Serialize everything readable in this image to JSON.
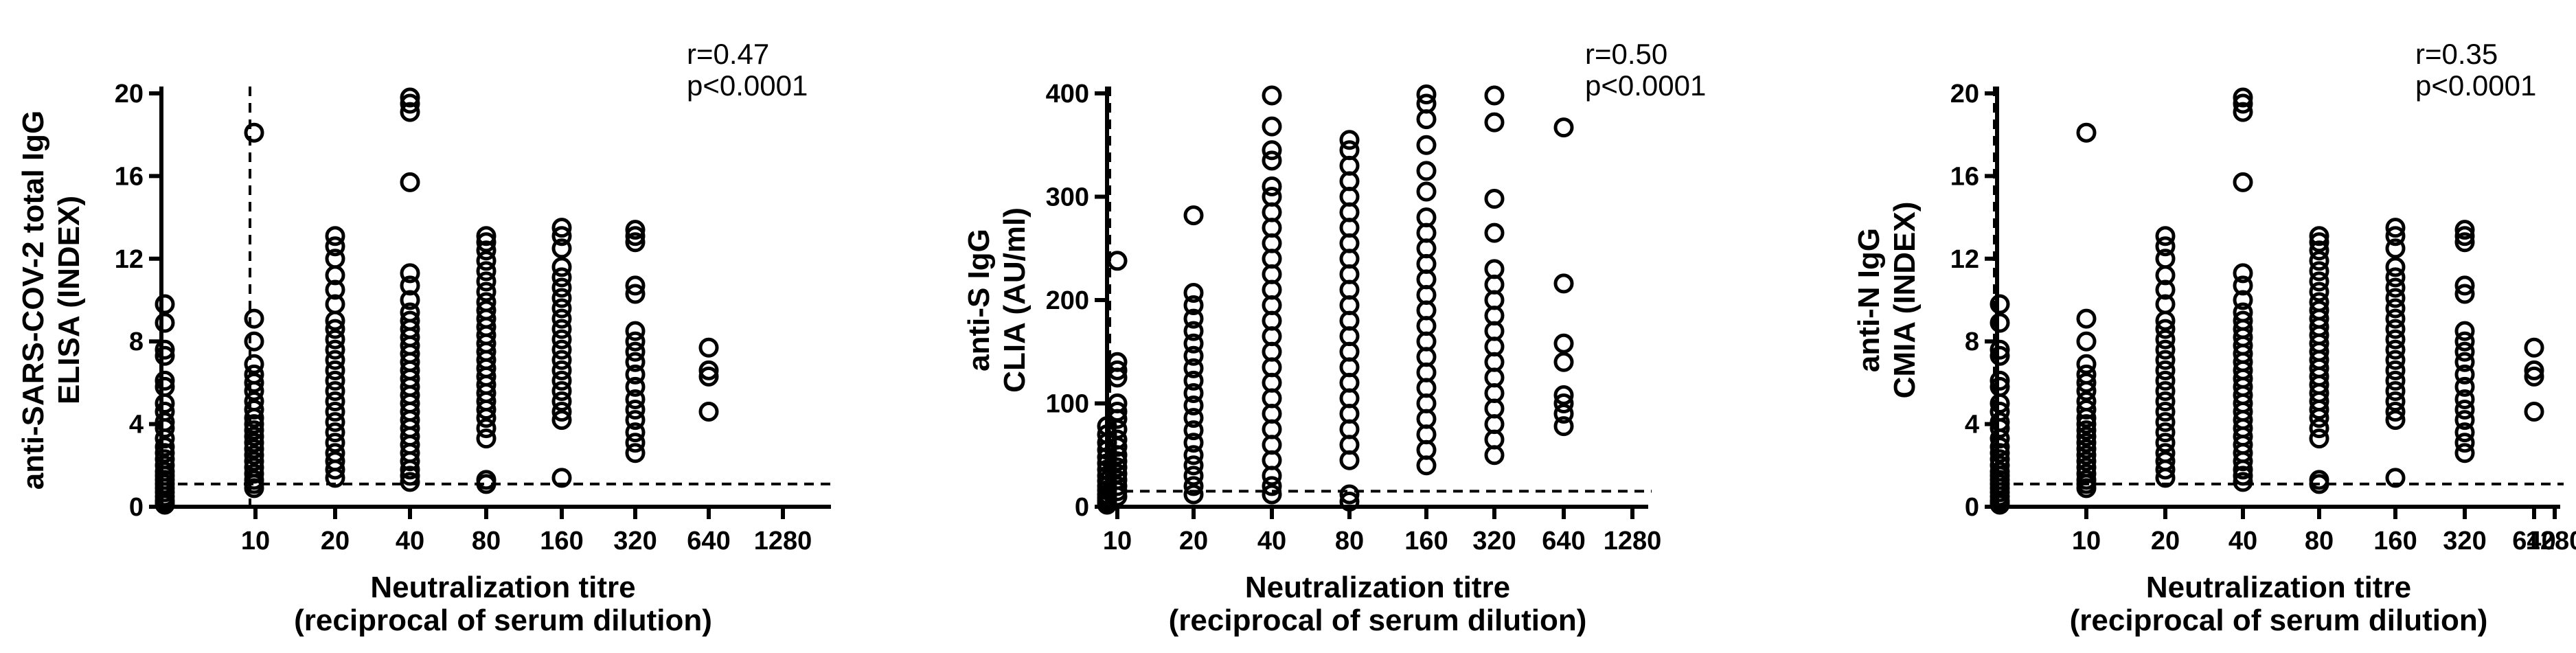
{
  "chart_data": [
    {
      "type": "scatter",
      "ylabel": [
        "anti-SARS-COV-2 total IgG",
        "ELISA (INDEX)"
      ],
      "xlabel": [
        "Neutralization titre",
        "(reciprocal of serum dilution)"
      ],
      "ylim": [
        0,
        20
      ],
      "yticks": [
        "0",
        "4",
        "8",
        "12",
        "16",
        "20"
      ],
      "xticks": [
        "10",
        "20",
        "40",
        "80",
        "160",
        "320",
        "640",
        "1280"
      ],
      "x_scale": "log2",
      "annotation": [
        "r=0.47",
        "p<0.0001"
      ],
      "ref_lines": {
        "y": 1.1,
        "x": "between <10 and 10"
      },
      "series": [
        {
          "x": "<10",
          "y": [
            9.8,
            8.9,
            7.6,
            7.3,
            6.1,
            5.8,
            5.0,
            4.6,
            4.1,
            3.8,
            3.3,
            2.9,
            2.6,
            2.3,
            2.0,
            1.7,
            1.5,
            1.3,
            1.1,
            0.9,
            0.7,
            0.5,
            0.3,
            0.2,
            0.1
          ]
        },
        {
          "x": "10",
          "y": [
            18.1,
            9.1,
            8.0,
            6.9,
            6.4,
            6.0,
            5.6,
            5.1,
            4.7,
            4.3,
            4.0,
            3.7,
            3.4,
            3.1,
            2.8,
            2.5,
            2.2,
            1.9,
            1.6,
            1.3,
            1.1,
            0.9
          ]
        },
        {
          "x": "20",
          "y": [
            13.1,
            12.6,
            12.0,
            11.2,
            10.5,
            9.8,
            9.0,
            8.6,
            8.1,
            7.6,
            7.1,
            6.6,
            6.1,
            5.6,
            5.1,
            4.6,
            4.1,
            3.6,
            3.1,
            2.6,
            2.2,
            1.8,
            1.4
          ]
        },
        {
          "x": "40",
          "y": [
            19.8,
            19.5,
            19.1,
            15.7,
            11.3,
            10.7,
            10.0,
            9.4,
            9.0,
            8.6,
            8.2,
            7.8,
            7.4,
            7.0,
            6.6,
            6.2,
            5.8,
            5.4,
            5.0,
            4.6,
            4.2,
            3.8,
            3.4,
            3.0,
            2.6,
            2.2,
            1.8,
            1.5,
            1.2
          ]
        },
        {
          "x": "80",
          "y": [
            13.1,
            12.8,
            12.4,
            11.9,
            11.4,
            10.9,
            10.4,
            9.9,
            9.5,
            9.1,
            8.7,
            8.3,
            7.9,
            7.5,
            7.1,
            6.7,
            6.3,
            5.9,
            5.5,
            5.1,
            4.7,
            4.3,
            3.8,
            3.3,
            1.3,
            1.1
          ]
        },
        {
          "x": "160",
          "y": [
            13.5,
            13.1,
            12.5,
            11.6,
            11.1,
            10.6,
            10.1,
            9.6,
            9.1,
            8.6,
            8.1,
            7.6,
            7.1,
            6.6,
            6.1,
            5.6,
            5.1,
            4.6,
            4.2,
            1.4
          ]
        },
        {
          "x": "320",
          "y": [
            13.4,
            13.1,
            12.8,
            10.7,
            10.3,
            8.5,
            8.0,
            7.5,
            7.0,
            6.4,
            5.8,
            5.2,
            4.7,
            4.2,
            3.6,
            3.1,
            2.6
          ]
        },
        {
          "x": "640",
          "y": [
            7.7,
            6.6,
            6.3,
            4.6
          ]
        }
      ]
    },
    {
      "type": "scatter",
      "ylabel": [
        "anti-S IgG",
        "CLIA (AU/ml)"
      ],
      "xlabel": [
        "Neutralization titre",
        "(reciprocal of serum dilution)"
      ],
      "ylim": [
        0,
        400
      ],
      "yticks": [
        "0",
        "100",
        "200",
        "300",
        "400"
      ],
      "xticks": [
        "10",
        "20",
        "40",
        "80",
        "160",
        "320",
        "640",
        "1280"
      ],
      "x_scale": "log2",
      "annotation": [
        "r=0.50",
        "p<0.0001"
      ],
      "ref_lines": {
        "y": 15,
        "x": "between <10 and 10"
      },
      "series": [
        {
          "x": "<10",
          "y": [
            78,
            70,
            62,
            55,
            48,
            42,
            36,
            30,
            25,
            20,
            16,
            12,
            9,
            6,
            4,
            2
          ]
        },
        {
          "x": "10",
          "y": [
            238,
            140,
            132,
            125,
            100,
            92,
            85,
            75,
            65,
            58,
            50,
            44,
            38,
            32,
            26,
            20,
            15,
            10
          ]
        },
        {
          "x": "20",
          "y": [
            282,
            207,
            195,
            182,
            170,
            158,
            146,
            134,
            122,
            110,
            98,
            86,
            74,
            62,
            50,
            40,
            30,
            20,
            12
          ]
        },
        {
          "x": "40",
          "y": [
            398,
            368,
            345,
            335,
            310,
            300,
            285,
            270,
            255,
            240,
            225,
            210,
            195,
            180,
            165,
            150,
            135,
            120,
            105,
            90,
            75,
            60,
            45,
            30,
            20,
            12
          ]
        },
        {
          "x": "80",
          "y": [
            355,
            345,
            330,
            315,
            300,
            285,
            270,
            255,
            240,
            225,
            210,
            195,
            180,
            165,
            150,
            135,
            120,
            105,
            90,
            75,
            60,
            45,
            12,
            5
          ]
        },
        {
          "x": "160",
          "y": [
            399,
            390,
            375,
            350,
            325,
            305,
            280,
            265,
            250,
            235,
            220,
            205,
            190,
            175,
            160,
            145,
            130,
            115,
            100,
            85,
            70,
            55,
            40
          ]
        },
        {
          "x": "320",
          "y": [
            398,
            372,
            298,
            265,
            230,
            215,
            200,
            185,
            170,
            155,
            140,
            125,
            110,
            95,
            80,
            65,
            50
          ]
        },
        {
          "x": "640",
          "y": [
            367,
            216,
            158,
            140,
            108,
            100,
            90,
            78
          ]
        }
      ]
    },
    {
      "type": "scatter",
      "ylabel": [
        "anti-N IgG",
        "CMIA (INDEX)"
      ],
      "xlabel": [
        "Neutralization titre",
        "(reciprocal of serum dilution)"
      ],
      "ylim": [
        0,
        20
      ],
      "yticks": [
        "0",
        "4",
        "8",
        "12",
        "16",
        "20"
      ],
      "xticks": [
        "10",
        "20",
        "40",
        "80",
        "160",
        "320",
        "640",
        "1280"
      ],
      "x_scale": "log2",
      "annotation": [
        "r=0.35",
        "p<0.0001"
      ],
      "ref_lines": {
        "y": 1.1,
        "x": "between <10 and 10"
      },
      "series": [
        {
          "x": "<10",
          "y": [
            9.8,
            8.9,
            7.6,
            7.3,
            6.1,
            5.8,
            5.0,
            4.6,
            4.1,
            3.8,
            3.3,
            2.9,
            2.6,
            2.3,
            2.0,
            1.7,
            1.5,
            1.3,
            1.1,
            0.9,
            0.7,
            0.5,
            0.3,
            0.2,
            0.1
          ]
        },
        {
          "x": "10",
          "y": [
            18.1,
            9.1,
            8.0,
            6.9,
            6.4,
            6.0,
            5.6,
            5.1,
            4.7,
            4.3,
            4.0,
            3.7,
            3.4,
            3.1,
            2.8,
            2.5,
            2.2,
            1.9,
            1.6,
            1.3,
            1.1,
            0.9
          ]
        },
        {
          "x": "20",
          "y": [
            13.1,
            12.6,
            12.0,
            11.2,
            10.5,
            9.8,
            9.0,
            8.6,
            8.1,
            7.6,
            7.1,
            6.6,
            6.1,
            5.6,
            5.1,
            4.6,
            4.1,
            3.6,
            3.1,
            2.6,
            2.2,
            1.8,
            1.4
          ]
        },
        {
          "x": "40",
          "y": [
            19.8,
            19.5,
            19.1,
            15.7,
            11.3,
            10.7,
            10.0,
            9.4,
            9.0,
            8.6,
            8.2,
            7.8,
            7.4,
            7.0,
            6.6,
            6.2,
            5.8,
            5.4,
            5.0,
            4.6,
            4.2,
            3.8,
            3.4,
            3.0,
            2.6,
            2.2,
            1.8,
            1.5,
            1.2
          ]
        },
        {
          "x": "80",
          "y": [
            13.1,
            12.8,
            12.4,
            11.9,
            11.4,
            10.9,
            10.4,
            9.9,
            9.5,
            9.1,
            8.7,
            8.3,
            7.9,
            7.5,
            7.1,
            6.7,
            6.3,
            5.9,
            5.5,
            5.1,
            4.7,
            4.3,
            3.8,
            3.3,
            1.3,
            1.1
          ]
        },
        {
          "x": "160",
          "y": [
            13.5,
            13.1,
            12.5,
            11.6,
            11.1,
            10.6,
            10.1,
            9.6,
            9.1,
            8.6,
            8.1,
            7.6,
            7.1,
            6.6,
            6.1,
            5.6,
            5.1,
            4.6,
            4.2,
            1.4
          ]
        },
        {
          "x": "320",
          "y": [
            13.4,
            13.1,
            12.8,
            10.7,
            10.3,
            8.5,
            8.0,
            7.5,
            7.0,
            6.4,
            5.8,
            5.2,
            4.7,
            4.2,
            3.6,
            3.1,
            2.6
          ]
        },
        {
          "x": "640",
          "y": [
            7.7,
            6.6,
            6.3,
            4.6
          ]
        }
      ]
    }
  ]
}
